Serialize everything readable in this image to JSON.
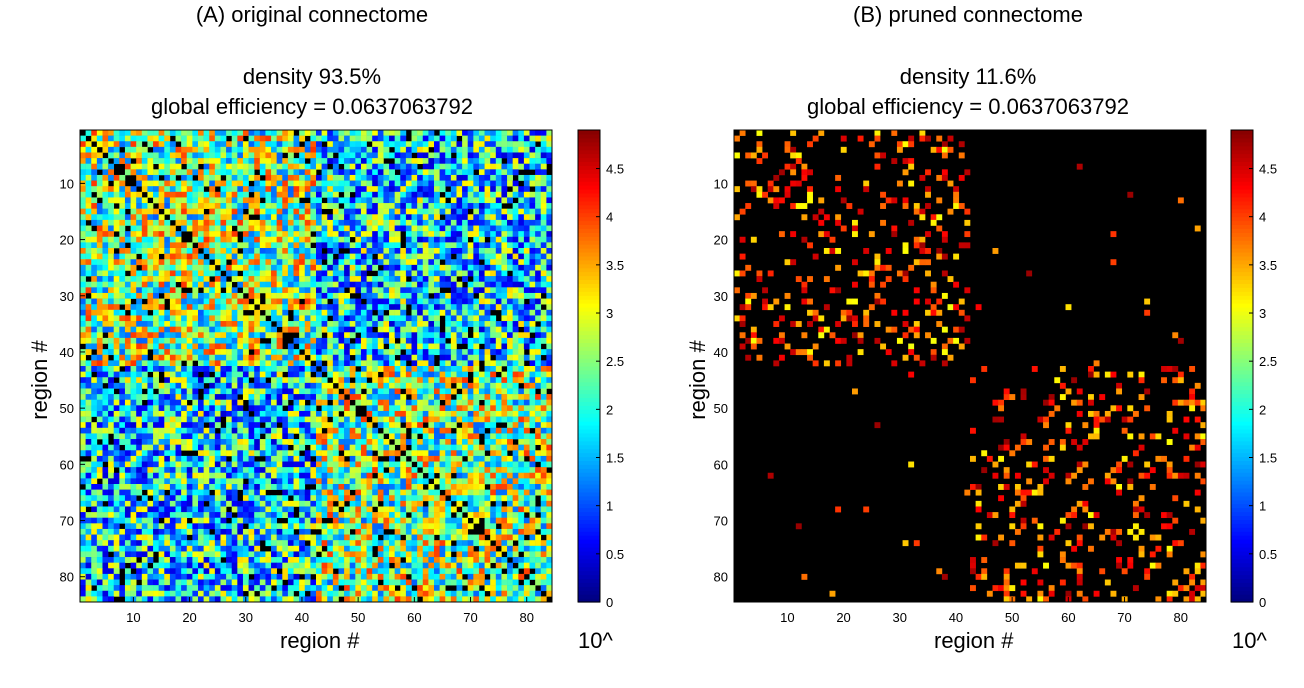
{
  "chart_data": [
    {
      "type": "heatmap",
      "title": "(A) original connectome",
      "subtitle_lines": [
        "density 93.5%",
        "global efficiency = 0.0637063792"
      ],
      "xlabel": "region #",
      "ylabel": "region #",
      "n_regions": 84,
      "x_ticks": [
        10,
        20,
        30,
        40,
        50,
        60,
        70,
        80
      ],
      "y_ticks": [
        10,
        20,
        30,
        40,
        50,
        60,
        70,
        80
      ],
      "colorbar": {
        "colormap": "jet",
        "range": [
          0,
          4.9
        ],
        "ticks": [
          "0",
          "0.5",
          "1",
          "1.5",
          "2",
          "2.5",
          "3",
          "3.5",
          "4",
          "4.5"
        ],
        "label": "10^"
      },
      "density_percent": 93.5,
      "global_efficiency": 0.0637063792
    },
    {
      "type": "heatmap",
      "title": "(B) pruned connectome",
      "subtitle_lines": [
        "density 11.6%",
        "global efficiency = 0.0637063792"
      ],
      "xlabel": "region #",
      "ylabel": "region #",
      "n_regions": 84,
      "x_ticks": [
        10,
        20,
        30,
        40,
        50,
        60,
        70,
        80
      ],
      "y_ticks": [
        10,
        20,
        30,
        40,
        50,
        60,
        70,
        80
      ],
      "colorbar": {
        "colormap": "jet",
        "range": [
          0,
          4.9
        ],
        "ticks": [
          "0",
          "0.5",
          "1",
          "1.5",
          "2",
          "2.5",
          "3",
          "3.5",
          "4",
          "4.5"
        ],
        "label": "10^"
      },
      "density_percent": 11.6,
      "global_efficiency": 0.0637063792
    }
  ]
}
